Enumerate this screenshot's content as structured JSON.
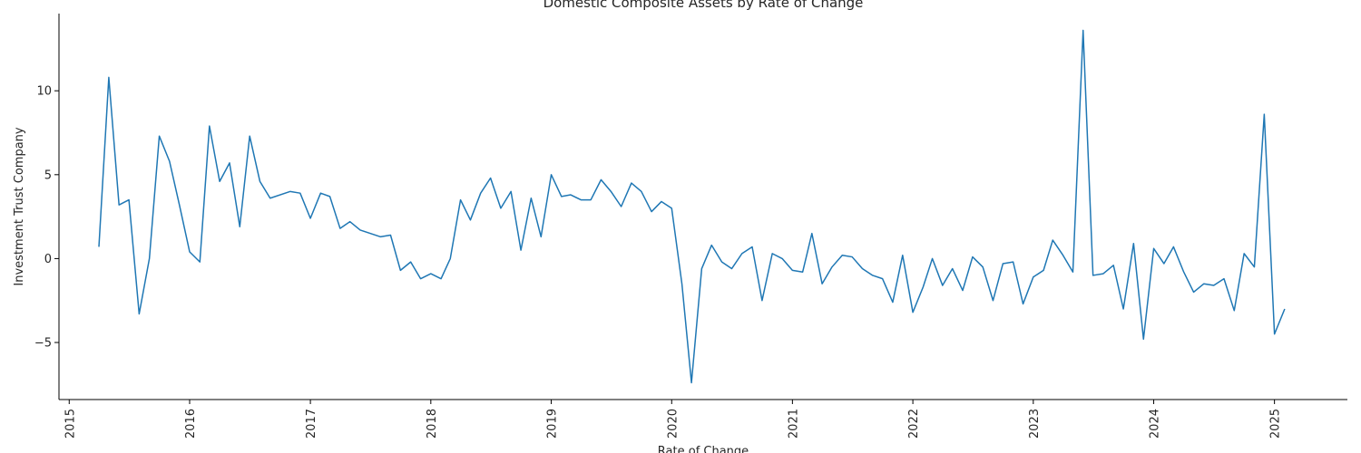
{
  "chart_data": {
    "type": "line",
    "title": "Domestic Composite Assets by Rate of Change",
    "xlabel": "Rate of Change",
    "ylabel": "Investment Trust Company",
    "xlim": [
      "2014-12-01",
      "2025-08-10"
    ],
    "ylim": [
      -8.4,
      14.6
    ],
    "x_ticks": [
      "2015",
      "2016",
      "2017",
      "2018",
      "2019",
      "2020",
      "2021",
      "2022",
      "2023",
      "2024",
      "2025"
    ],
    "y_ticks": [
      -5,
      0,
      5,
      10
    ],
    "y_tick_labels": [
      "−5",
      "0",
      "5",
      "10"
    ],
    "grid": false,
    "legend": "none",
    "colors": {
      "line": "#1f77b4",
      "axis": "#000000",
      "text": "#262626"
    },
    "series": [
      {
        "x": [
          "2015-04-01",
          "2015-05-01",
          "2015-06-01",
          "2015-07-01",
          "2015-08-01",
          "2015-09-01",
          "2015-10-01",
          "2015-11-01",
          "2015-12-01",
          "2016-01-01",
          "2016-02-01",
          "2016-03-01",
          "2016-04-01",
          "2016-05-01",
          "2016-06-01",
          "2016-07-01",
          "2016-08-01",
          "2016-09-01",
          "2016-11-01",
          "2016-12-01",
          "2017-01-01",
          "2017-02-01",
          "2017-03-01",
          "2017-04-01",
          "2017-05-01",
          "2017-06-01",
          "2017-08-01",
          "2017-09-01",
          "2017-10-01",
          "2017-11-01",
          "2017-12-01",
          "2018-01-01",
          "2018-02-01",
          "2018-03-01",
          "2018-04-01",
          "2018-05-01",
          "2018-06-01",
          "2018-07-01",
          "2018-08-01",
          "2018-09-01",
          "2018-10-01",
          "2018-11-01",
          "2018-12-01",
          "2019-01-01",
          "2019-02-01",
          "2019-03-01",
          "2019-04-01",
          "2019-05-01",
          "2019-06-01",
          "2019-07-01",
          "2019-08-01",
          "2019-09-01",
          "2019-10-01",
          "2019-11-01",
          "2019-12-01",
          "2020-01-01",
          "2020-02-01",
          "2020-03-01",
          "2020-04-01",
          "2020-05-01",
          "2020-06-01",
          "2020-07-01",
          "2020-08-01",
          "2020-09-01",
          "2020-10-01",
          "2020-11-01",
          "2020-12-01",
          "2021-01-01",
          "2021-02-01",
          "2021-03-01",
          "2021-04-01",
          "2021-05-01",
          "2021-06-01",
          "2021-07-01",
          "2021-08-01",
          "2021-09-01",
          "2021-10-01",
          "2021-11-01",
          "2021-12-01",
          "2022-01-01",
          "2022-02-01",
          "2022-03-01",
          "2022-04-01",
          "2022-05-01",
          "2022-06-01",
          "2022-07-01",
          "2022-08-01",
          "2022-09-01",
          "2022-10-01",
          "2022-11-01",
          "2022-12-01",
          "2023-01-01",
          "2023-02-01",
          "2023-03-01",
          "2023-04-01",
          "2023-05-01",
          "2023-06-01",
          "2023-07-01",
          "2023-08-01",
          "2023-09-01",
          "2023-10-01",
          "2023-11-01",
          "2023-12-01",
          "2024-01-01",
          "2024-02-01",
          "2024-03-01",
          "2024-04-01",
          "2024-05-01",
          "2024-06-01",
          "2024-07-01",
          "2024-08-01",
          "2024-09-01",
          "2024-10-01",
          "2024-11-01",
          "2024-12-01",
          "2025-01-01",
          "2025-02-01"
        ],
        "values": [
          0.7,
          10.8,
          3.2,
          3.5,
          -3.3,
          0.0,
          7.3,
          5.8,
          3.2,
          0.4,
          -0.2,
          7.9,
          4.6,
          5.7,
          1.9,
          7.3,
          4.6,
          3.6,
          4.0,
          3.9,
          2.4,
          3.9,
          3.7,
          1.8,
          2.2,
          1.7,
          1.3,
          1.4,
          -0.7,
          -0.2,
          -1.2,
          -0.9,
          -1.2,
          0.0,
          3.5,
          2.3,
          3.9,
          4.8,
          3.0,
          4.0,
          0.5,
          3.6,
          1.3,
          5.0,
          3.7,
          3.8,
          3.5,
          3.5,
          4.7,
          4.0,
          3.1,
          4.5,
          4.0,
          2.8,
          3.4,
          3.0,
          -1.5,
          -7.4,
          -0.6,
          0.8,
          -0.2,
          -0.6,
          0.3,
          0.7,
          -2.5,
          0.3,
          0.0,
          -0.7,
          -0.8,
          1.5,
          -1.5,
          -0.5,
          0.2,
          0.1,
          -0.6,
          -1.0,
          -1.2,
          -2.6,
          0.2,
          -3.2,
          -1.7,
          0.0,
          -1.6,
          -0.6,
          -1.9,
          0.1,
          -0.5,
          -2.5,
          -0.3,
          -0.2,
          -2.7,
          -1.1,
          -0.7,
          1.1,
          0.2,
          -0.8,
          13.6,
          -1.0,
          -0.9,
          -0.4,
          -3.0,
          0.9,
          -4.8,
          0.6,
          -0.3,
          0.7,
          -0.8,
          -2.0,
          -1.5,
          -1.6,
          -1.2,
          -3.1,
          0.3,
          -0.5,
          8.6,
          -4.5,
          -3.0
        ]
      }
    ]
  }
}
